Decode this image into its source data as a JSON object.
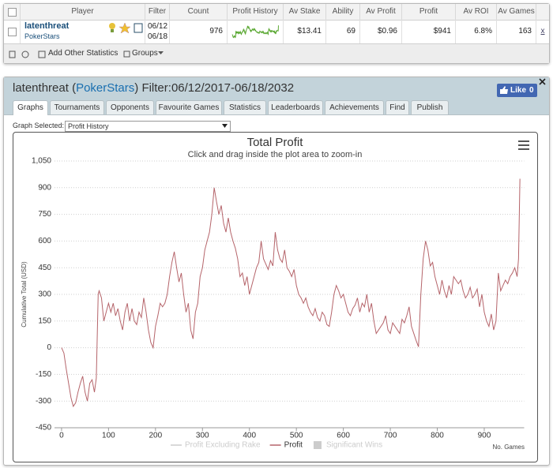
{
  "table": {
    "headers": [
      "Player",
      "Filter",
      "Count",
      "Profit History",
      "Av Stake",
      "Ability",
      "Av Profit",
      "Profit",
      "Av ROI",
      "Av Games"
    ],
    "row": {
      "player": "latenthreat",
      "site": "PokerStars",
      "filter_from": "06/12",
      "filter_to": "06/18",
      "count": 976,
      "av_stake": "$13.41",
      "ability": 69,
      "av_profit": "$0.96",
      "profit": "$941",
      "av_roi": "6.8%",
      "av_games": 163,
      "remove": "x"
    },
    "footer": {
      "add_stats": "Add Other Statistics",
      "groups": "Groups"
    }
  },
  "profile": {
    "player": "latenthreat",
    "open": "(",
    "site": "PokerStars",
    "close": ")",
    "filter": "Filter:06/12/2017-06/18/2032",
    "like": "Like",
    "like_count": 0
  },
  "tabs": [
    "Graphs",
    "Tournaments",
    "Opponents",
    "Favourite Games",
    "Statistics",
    "Leaderboards",
    "Achievements",
    "Find",
    "Publish"
  ],
  "graph_selector": {
    "label": "Graph Selected:",
    "value": "Profit History"
  },
  "chart_data": {
    "type": "line",
    "title": "Total Profit",
    "subtitle": "Click and drag inside the plot area to zoom-in",
    "y_label": "Cumulative Total (USD)",
    "x_label": "No. Games",
    "xlim": [
      -15,
      985
    ],
    "xticks": [
      0,
      100,
      200,
      300,
      400,
      500,
      600,
      700,
      800,
      900
    ],
    "ylim": [
      -450,
      1050
    ],
    "yticks": [
      -450,
      -300,
      -150,
      0,
      150,
      300,
      450,
      600,
      750,
      900,
      {
        "value": 1050,
        "label": "1,050"
      }
    ],
    "grid": true,
    "x": [
      0,
      5,
      10,
      15,
      20,
      25,
      30,
      35,
      40,
      45,
      50,
      55,
      60,
      65,
      70,
      74,
      78,
      80,
      85,
      90,
      95,
      100,
      105,
      110,
      115,
      120,
      125,
      130,
      135,
      140,
      145,
      150,
      155,
      160,
      165,
      170,
      175,
      180,
      185,
      190,
      195,
      200,
      205,
      210,
      215,
      220,
      225,
      230,
      235,
      240,
      245,
      250,
      255,
      260,
      265,
      270,
      275,
      280,
      285,
      290,
      295,
      300,
      305,
      310,
      315,
      320,
      325,
      330,
      335,
      340,
      345,
      350,
      355,
      360,
      365,
      370,
      375,
      380,
      385,
      390,
      395,
      400,
      405,
      410,
      415,
      420,
      425,
      430,
      435,
      440,
      445,
      450,
      455,
      460,
      465,
      470,
      475,
      480,
      485,
      490,
      495,
      500,
      505,
      510,
      515,
      520,
      525,
      530,
      535,
      540,
      545,
      550,
      555,
      560,
      565,
      570,
      575,
      580,
      585,
      590,
      595,
      600,
      605,
      610,
      615,
      620,
      625,
      630,
      635,
      640,
      645,
      650,
      655,
      660,
      665,
      670,
      675,
      680,
      685,
      690,
      695,
      700,
      705,
      710,
      715,
      720,
      725,
      730,
      735,
      740,
      745,
      750,
      755,
      760,
      765,
      770,
      775,
      780,
      785,
      790,
      795,
      800,
      805,
      810,
      815,
      820,
      825,
      830,
      835,
      840,
      845,
      850,
      855,
      860,
      865,
      870,
      875,
      880,
      885,
      890,
      895,
      900,
      905,
      910,
      915,
      920,
      925,
      930,
      935,
      940,
      945,
      950,
      955,
      960,
      965,
      970,
      973,
      976
    ],
    "series": [
      {
        "name": "Profit Excluding Rake",
        "color": "#cccccc",
        "hidden": true
      },
      {
        "name": "Profit",
        "color": "#b5646a",
        "hidden": false,
        "values": [
          0,
          -30,
          -120,
          -200,
          -280,
          -330,
          -310,
          -250,
          -200,
          -160,
          -250,
          -300,
          -200,
          -180,
          -250,
          -170,
          300,
          320,
          280,
          150,
          200,
          250,
          200,
          250,
          180,
          220,
          150,
          100,
          200,
          250,
          150,
          220,
          150,
          130,
          200,
          170,
          280,
          200,
          100,
          30,
          0,
          120,
          180,
          250,
          230,
          250,
          300,
          400,
          480,
          540,
          450,
          370,
          420,
          300,
          200,
          250,
          100,
          50,
          200,
          250,
          400,
          450,
          550,
          600,
          650,
          750,
          900,
          820,
          750,
          800,
          700,
          650,
          730,
          650,
          600,
          560,
          500,
          400,
          420,
          350,
          400,
          300,
          350,
          400,
          450,
          480,
          600,
          500,
          470,
          440,
          490,
          460,
          650,
          550,
          500,
          480,
          550,
          450,
          430,
          400,
          440,
          350,
          300,
          280,
          250,
          280,
          230,
          200,
          180,
          220,
          170,
          150,
          200,
          180,
          130,
          120,
          200,
          300,
          350,
          320,
          280,
          300,
          250,
          200,
          180,
          220,
          240,
          280,
          200,
          250,
          230,
          300,
          200,
          250,
          150,
          80,
          100,
          120,
          140,
          180,
          100,
          80,
          140,
          120,
          100,
          80,
          160,
          140,
          180,
          230,
          120,
          80,
          40,
          5,
          300,
          500,
          600,
          550,
          460,
          480,
          400,
          350,
          300,
          380,
          320,
          280,
          350,
          300,
          400,
          380,
          360,
          380,
          320,
          280,
          300,
          340,
          280,
          300,
          330,
          230,
          300,
          200,
          150,
          120,
          190,
          100,
          150,
          420,
          320,
          350,
          380,
          360,
          400,
          420,
          450,
          400,
          500,
          950
        ]
      },
      {
        "name": "Significant Wins",
        "color": "#cccccc",
        "hidden": true
      }
    ]
  }
}
